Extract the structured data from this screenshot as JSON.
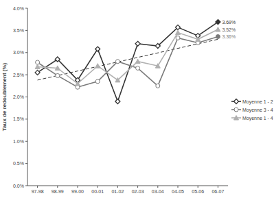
{
  "chart_data": {
    "type": "line",
    "y_label": "Taux de redoublement (%)",
    "categories": [
      "97-98",
      "98-99",
      "99-00",
      "00-01",
      "01-02",
      "02-03",
      "03-04",
      "04-05",
      "05-06",
      "06-07"
    ],
    "ylim": [
      0,
      4
    ],
    "yticks": [
      {
        "value": 0,
        "label": "0.0%"
      },
      {
        "value": 0.5,
        "label": "0.5%"
      },
      {
        "value": 1,
        "label": "1.0%"
      },
      {
        "value": 1.5,
        "label": "1.5%"
      },
      {
        "value": 2,
        "label": "2.0%"
      },
      {
        "value": 2.5,
        "label": "2.5%"
      },
      {
        "value": 3,
        "label": "3.0%"
      },
      {
        "value": 3.5,
        "label": "3.5%"
      },
      {
        "value": 4,
        "label": "4.0%"
      }
    ],
    "grid": false,
    "legend": "right",
    "series": [
      {
        "name": "Moyenne 1 - 2",
        "color": "#333333",
        "marker": "diamond",
        "values": [
          2.55,
          2.85,
          2.38,
          3.08,
          1.9,
          3.2,
          3.15,
          3.57,
          3.38,
          3.69
        ]
      },
      {
        "name": "Moyenne 3 - 4",
        "color": "#7a7a7a",
        "marker": "circle",
        "values": [
          2.78,
          2.48,
          2.22,
          2.35,
          2.8,
          2.65,
          2.25,
          3.33,
          3.22,
          3.36
        ]
      },
      {
        "name": "Moyenne 1 - 4",
        "color": "#b0b0b0",
        "marker": "triangle",
        "values": [
          2.68,
          2.65,
          2.3,
          2.7,
          2.38,
          2.8,
          2.7,
          3.45,
          3.3,
          3.52
        ]
      }
    ],
    "trendline": {
      "start": 2.38,
      "end": 3.3,
      "line_style": "dashed",
      "color": "#333333"
    },
    "annotations": [
      {
        "text": "3.69%",
        "value": 3.69,
        "color": "#333333"
      },
      {
        "text": "3.52%",
        "value": 3.52,
        "color": "#555555"
      },
      {
        "text": "3.36%",
        "value": 3.36,
        "color": "#7a7a7a"
      }
    ]
  }
}
